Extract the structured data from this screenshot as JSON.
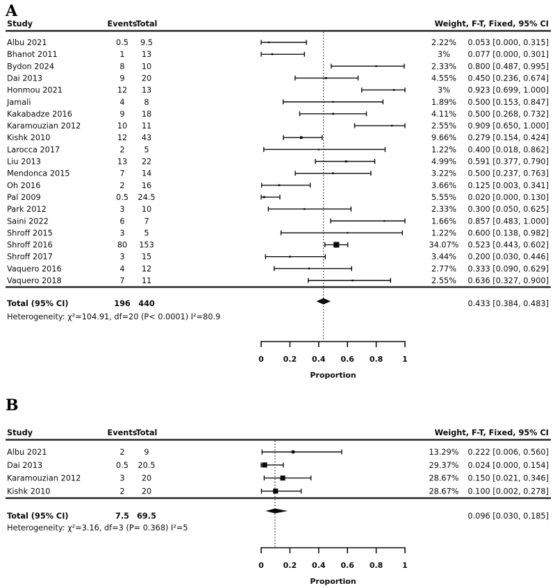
{
  "colors": {
    "background": "#ffffff",
    "ink": "#0a0a0a",
    "rule": "#2a2a2a",
    "dotted": "#3a3a3a"
  },
  "chart_data": [
    {
      "type": "scatter",
      "variant": "forest-plot",
      "panel_label": "A",
      "columns": {
        "study": "Study",
        "events": "Events",
        "total": "Total",
        "weight_ci": "Weight, F-T, Fixed, 95% CI"
      },
      "axis": {
        "xlabel": "Proportion",
        "min": 0,
        "max": 1,
        "ticks": [
          0,
          0.2,
          0.4,
          0.6,
          0.8,
          1
        ],
        "tick_labels": [
          "0",
          "0.2",
          "0.4",
          "0.6",
          "0.8",
          "1"
        ]
      },
      "studies": [
        {
          "study": "Albu 2021",
          "events": "0.5",
          "total": "9.5",
          "weight": 2.22,
          "weight_label": "2.22%",
          "proportion": 0.053,
          "ci_low": 0.0,
          "ci_high": 0.315,
          "ci_label": "0.053 [0.000, 0.315]"
        },
        {
          "study": "Bhanot 2011",
          "events": "1",
          "total": "13",
          "weight": 3,
          "weight_label": "3%",
          "proportion": 0.077,
          "ci_low": 0.0,
          "ci_high": 0.301,
          "ci_label": "0.077 [0.000, 0.301]"
        },
        {
          "study": "Bydon 2024",
          "events": "8",
          "total": "10",
          "weight": 2.33,
          "weight_label": "2.33%",
          "proportion": 0.8,
          "ci_low": 0.487,
          "ci_high": 0.995,
          "ci_label": "0.800 [0.487, 0.995]"
        },
        {
          "study": "Dai 2013",
          "events": "9",
          "total": "20",
          "weight": 4.55,
          "weight_label": "4.55%",
          "proportion": 0.45,
          "ci_low": 0.236,
          "ci_high": 0.674,
          "ci_label": "0.450 [0.236, 0.674]"
        },
        {
          "study": "Honmou 2021",
          "events": "12",
          "total": "13",
          "weight": 3,
          "weight_label": "3%",
          "proportion": 0.923,
          "ci_low": 0.699,
          "ci_high": 1.0,
          "ci_label": "0.923 [0.699, 1.000]"
        },
        {
          "study": "Jamali",
          "events": "4",
          "total": "8",
          "weight": 1.89,
          "weight_label": "1.89%",
          "proportion": 0.5,
          "ci_low": 0.153,
          "ci_high": 0.847,
          "ci_label": "0.500 [0.153, 0.847]"
        },
        {
          "study": "Kakabadze 2016",
          "events": "9",
          "total": "18",
          "weight": 4.11,
          "weight_label": "4.11%",
          "proportion": 0.5,
          "ci_low": 0.268,
          "ci_high": 0.732,
          "ci_label": "0.500 [0.268, 0.732]"
        },
        {
          "study": "Karamouzian 2012",
          "events": "10",
          "total": "11",
          "weight": 2.55,
          "weight_label": "2.55%",
          "proportion": 0.909,
          "ci_low": 0.65,
          "ci_high": 1.0,
          "ci_label": "0.909 [0.650, 1.000]"
        },
        {
          "study": "Kishk 2010",
          "events": "12",
          "total": "43",
          "weight": 9.66,
          "weight_label": "9.66%",
          "proportion": 0.279,
          "ci_low": 0.154,
          "ci_high": 0.424,
          "ci_label": "0.279 [0.154, 0.424]"
        },
        {
          "study": "Larocca 2017",
          "events": "2",
          "total": "5",
          "weight": 1.22,
          "weight_label": "1.22%",
          "proportion": 0.4,
          "ci_low": 0.018,
          "ci_high": 0.862,
          "ci_label": "0.400 [0.018, 0.862]"
        },
        {
          "study": "Liu 2013",
          "events": "13",
          "total": "22",
          "weight": 4.99,
          "weight_label": "4.99%",
          "proportion": 0.591,
          "ci_low": 0.377,
          "ci_high": 0.79,
          "ci_label": "0.591 [0.377, 0.790]"
        },
        {
          "study": "Mendonca 2015",
          "events": "7",
          "total": "14",
          "weight": 3.22,
          "weight_label": "3.22%",
          "proportion": 0.5,
          "ci_low": 0.237,
          "ci_high": 0.763,
          "ci_label": "0.500 [0.237, 0.763]"
        },
        {
          "study": "Oh 2016",
          "events": "2",
          "total": "16",
          "weight": 3.66,
          "weight_label": "3.66%",
          "proportion": 0.125,
          "ci_low": 0.003,
          "ci_high": 0.341,
          "ci_label": "0.125 [0.003, 0.341]"
        },
        {
          "study": "Pal 2009",
          "events": "0.5",
          "total": "24.5",
          "weight": 5.55,
          "weight_label": "5.55%",
          "proportion": 0.02,
          "ci_low": 0.0,
          "ci_high": 0.13,
          "ci_label": "0.020 [0.000, 0.130]"
        },
        {
          "study": "Park 2012",
          "events": "3",
          "total": "10",
          "weight": 2.33,
          "weight_label": "2.33%",
          "proportion": 0.3,
          "ci_low": 0.05,
          "ci_high": 0.625,
          "ci_label": "0.300 [0.050, 0.625]"
        },
        {
          "study": "Saini 2022",
          "events": "6",
          "total": "7",
          "weight": 1.66,
          "weight_label": "1.66%",
          "proportion": 0.857,
          "ci_low": 0.483,
          "ci_high": 1.0,
          "ci_label": "0.857 [0.483, 1.000]"
        },
        {
          "study": "Shroff 2015",
          "events": "3",
          "total": "5",
          "weight": 1.22,
          "weight_label": "1.22%",
          "proportion": 0.6,
          "ci_low": 0.138,
          "ci_high": 0.982,
          "ci_label": "0.600 [0.138, 0.982]"
        },
        {
          "study": "Shroff 2016",
          "events": "80",
          "total": "153",
          "weight": 34.07,
          "weight_label": "34.07%",
          "proportion": 0.523,
          "ci_low": 0.443,
          "ci_high": 0.602,
          "ci_label": "0.523 [0.443, 0.602]"
        },
        {
          "study": "Shroff 2017",
          "events": "3",
          "total": "15",
          "weight": 3.44,
          "weight_label": "3.44%",
          "proportion": 0.2,
          "ci_low": 0.03,
          "ci_high": 0.446,
          "ci_label": "0.200 [0.030, 0.446]"
        },
        {
          "study": "Vaquero 2016",
          "events": "4",
          "total": "12",
          "weight": 2.77,
          "weight_label": "2.77%",
          "proportion": 0.333,
          "ci_low": 0.09,
          "ci_high": 0.629,
          "ci_label": "0.333 [0.090, 0.629]"
        },
        {
          "study": "Vaquero 2018",
          "events": "7",
          "total": "11",
          "weight": 2.55,
          "weight_label": "2.55%",
          "proportion": 0.636,
          "ci_low": 0.327,
          "ci_high": 0.9,
          "ci_label": "0.636 [0.327, 0.900]"
        }
      ],
      "total_row": {
        "label": "Total (95% CI)",
        "events": "196",
        "total": "440",
        "proportion": 0.433,
        "ci_low": 0.384,
        "ci_high": 0.483,
        "ci_label": "0.433 [0.384, 0.483]"
      },
      "heterogeneity": "Heterogeneity: χ²=104.91, df=20 (P< 0.0001) I²=80.9"
    },
    {
      "type": "scatter",
      "variant": "forest-plot",
      "panel_label": "B",
      "columns": {
        "study": "Study",
        "events": "Events",
        "total": "Total",
        "weight_ci": "Weight, F-T, Fixed, 95% CI"
      },
      "axis": {
        "xlabel": "Proportion",
        "min": 0,
        "max": 1,
        "ticks": [
          0,
          0.2,
          0.4,
          0.6,
          0.8,
          1
        ],
        "tick_labels": [
          "0",
          "0.2",
          "0.4",
          "0.6",
          "0.8",
          "1"
        ]
      },
      "studies": [
        {
          "study": "Albu 2021",
          "events": "2",
          "total": "9",
          "weight": 13.29,
          "weight_label": "13.29%",
          "proportion": 0.222,
          "ci_low": 0.006,
          "ci_high": 0.56,
          "ci_label": "0.222 [0.006, 0.560]"
        },
        {
          "study": "Dai 2013",
          "events": "0.5",
          "total": "20.5",
          "weight": 29.37,
          "weight_label": "29.37%",
          "proportion": 0.024,
          "ci_low": 0.0,
          "ci_high": 0.154,
          "ci_label": "0.024 [0.000, 0.154]"
        },
        {
          "study": "Karamouzian 2012",
          "events": "3",
          "total": "20",
          "weight": 28.67,
          "weight_label": "28.67%",
          "proportion": 0.15,
          "ci_low": 0.021,
          "ci_high": 0.346,
          "ci_label": "0.150 [0.021, 0.346]"
        },
        {
          "study": "Kishk 2010",
          "events": "2",
          "total": "20",
          "weight": 28.67,
          "weight_label": "28.67%",
          "proportion": 0.1,
          "ci_low": 0.002,
          "ci_high": 0.278,
          "ci_label": "0.100 [0.002, 0.278]"
        }
      ],
      "total_row": {
        "label": "Total (95% CI)",
        "events": "7.5",
        "total": "69.5",
        "proportion": 0.096,
        "ci_low": 0.03,
        "ci_high": 0.185,
        "ci_label": "0.096 [0.030, 0.185]"
      },
      "heterogeneity": "Heterogeneity: χ²=3.16, df=3 (P= 0.368) I²=5"
    }
  ]
}
